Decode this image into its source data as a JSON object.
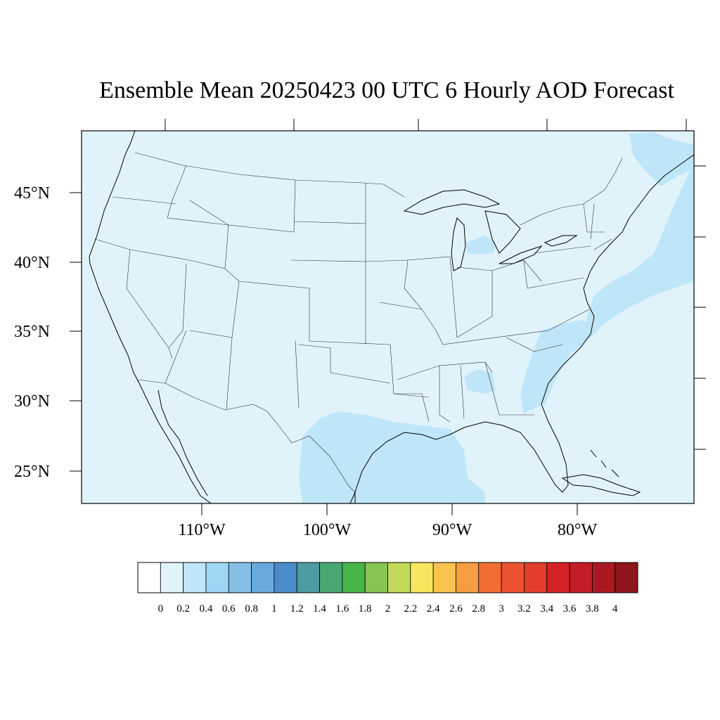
{
  "title": "Ensemble Mean 20250423 00 UTC 6 Hourly AOD Forecast",
  "map": {
    "projection": "lambert-conformal",
    "region": "contiguous-united-states",
    "lon_range": [
      -120,
      -71
    ],
    "lat_range": [
      22.7,
      49.5
    ],
    "ocean_value_range": "0.2-0.4",
    "land_value_range": "0-0.2",
    "enhanced_regions": [
      "gulf-of-mexico",
      "southeast-coast",
      "atlantic-coast",
      "lake-michigan"
    ]
  },
  "lat_labels": [
    {
      "label": "45°N",
      "value": 45
    },
    {
      "label": "40°N",
      "value": 40
    },
    {
      "label": "35°N",
      "value": 35
    },
    {
      "label": "30°N",
      "value": 30
    },
    {
      "label": "25°N",
      "value": 25
    }
  ],
  "lon_labels": [
    {
      "label": "110°W",
      "value": -110
    },
    {
      "label": "100°W",
      "value": -100
    },
    {
      "label": "90°W",
      "value": -90
    },
    {
      "label": "80°W",
      "value": -80
    }
  ],
  "colorbar": {
    "labels": [
      "0",
      "0.2",
      "0.4",
      "0.6",
      "0.8",
      "1",
      "1.2",
      "1.4",
      "1.6",
      "1.8",
      "2",
      "2.2",
      "2.4",
      "2.6",
      "2.8",
      "3",
      "3.2",
      "3.4",
      "3.6",
      "3.8",
      "4"
    ],
    "colors": [
      "#ffffff",
      "#e0f3fb",
      "#bfe6f8",
      "#9fd6f4",
      "#86bfe6",
      "#6aa9dc",
      "#4b8ccb",
      "#4a9ba3",
      "#49a774",
      "#48b54b",
      "#86c551",
      "#c3d95a",
      "#f8e65e",
      "#f8c34f",
      "#f69d41",
      "#f26d33",
      "#ec5331",
      "#e33b2c",
      "#d62128",
      "#c41d25",
      "#a81a20",
      "#8e1519"
    ]
  }
}
